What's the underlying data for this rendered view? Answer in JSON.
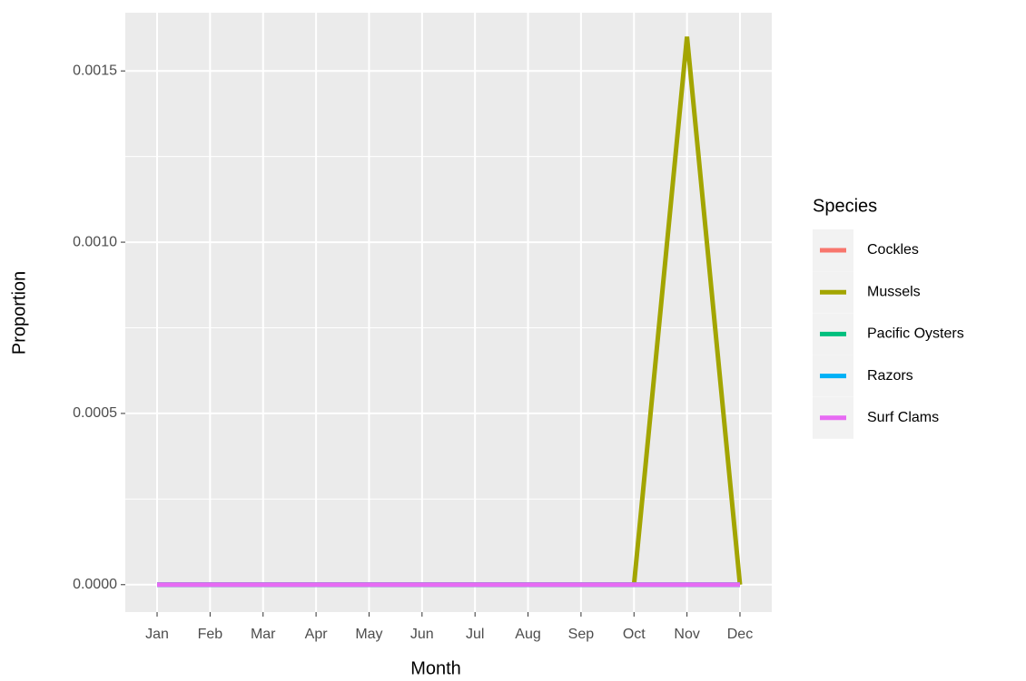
{
  "chart_data": {
    "type": "line",
    "x_label": "Month",
    "y_label": "Proportion",
    "categories": [
      "Jan",
      "Feb",
      "Mar",
      "Apr",
      "May",
      "Jun",
      "Jul",
      "Aug",
      "Sep",
      "Oct",
      "Nov",
      "Dec"
    ],
    "series": [
      {
        "name": "Cockles",
        "color": "#F8766D",
        "values": [
          0,
          0,
          0,
          0,
          0,
          0,
          0,
          0,
          0,
          0,
          0,
          0
        ]
      },
      {
        "name": "Mussels",
        "color": "#A3A500",
        "values": [
          0,
          0,
          0,
          0,
          0,
          0,
          0,
          0,
          0,
          0,
          0.0016,
          0
        ]
      },
      {
        "name": "Pacific Oysters",
        "color": "#00BF7D",
        "values": [
          0,
          0,
          0,
          0,
          0,
          0,
          0,
          0,
          0,
          0,
          0,
          0
        ]
      },
      {
        "name": "Razors",
        "color": "#00B0F6",
        "values": [
          0,
          0,
          0,
          0,
          0,
          0,
          0,
          0,
          0,
          0,
          0,
          0
        ]
      },
      {
        "name": "Surf Clams",
        "color": "#E76BF3",
        "values": [
          0,
          0,
          0,
          0,
          0,
          0,
          0,
          0,
          0,
          0,
          0,
          0
        ]
      }
    ],
    "ylim": [
      -8e-05,
      0.00167
    ],
    "yticks": [
      {
        "value": 0,
        "label": "0.0000"
      },
      {
        "value": 0.0005,
        "label": "0.0005"
      },
      {
        "value": 0.001,
        "label": "0.0010"
      },
      {
        "value": 0.0015,
        "label": "0.0015"
      }
    ],
    "grid": true,
    "legend_title": "Species",
    "legend_position": "right"
  }
}
